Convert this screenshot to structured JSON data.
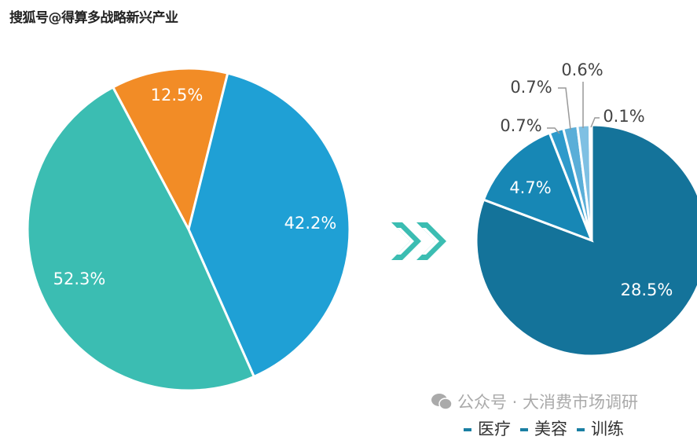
{
  "watermark": "搜狐号@得算多战略新兴产业",
  "source": "公众号 · 大消费市场调研",
  "chart_data": [
    {
      "type": "pie",
      "values": [
        12.5,
        42.2,
        52.3
      ],
      "labels": [
        "12.5%",
        "42.2%",
        "52.3%"
      ],
      "colors": [
        "#f28c26",
        "#1fa0d5",
        "#3bbdb2"
      ]
    },
    {
      "type": "pie",
      "values": [
        28.5,
        4.7,
        0.7,
        0.7,
        0.6,
        0.1
      ],
      "labels": [
        "28.5%",
        "4.7%",
        "0.7%",
        "0.7%",
        "0.6%",
        "0.1%"
      ],
      "colors": [
        "#14739a",
        "#1787b5",
        "#2e9acb",
        "#5aaed8",
        "#7fc0e3",
        "#a9d4ee"
      ]
    }
  ],
  "legend": [
    {
      "label": "医疗",
      "color": "#1a7fa3"
    },
    {
      "label": "美容",
      "color": "#1a7fa3"
    },
    {
      "label": "训练",
      "color": "#1a7fa3"
    }
  ],
  "arrow_color": "#3bbdb2"
}
